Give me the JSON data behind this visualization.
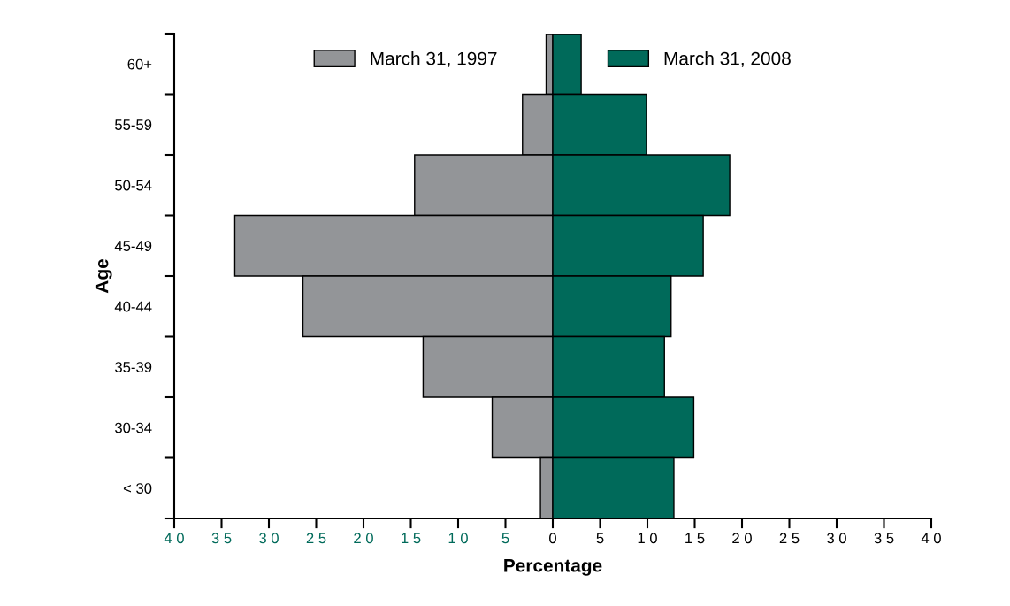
{
  "chart_data": {
    "type": "bar",
    "orientation": "horizontal",
    "stacked": true,
    "ylabel": "Age",
    "xlabel": "Percentage",
    "categories": [
      "60+",
      "55-59",
      "50-54",
      "45-49",
      "40-44",
      "35-39",
      "30-34",
      "< 30"
    ],
    "series": [
      {
        "name": "March 31, 1997",
        "color": "#939598",
        "values": [
          -0.7,
          -3.2,
          -14.6,
          -33.6,
          -26.4,
          -13.7,
          -6.4,
          -1.3
        ]
      },
      {
        "name": "March 31, 2008",
        "color": "#006a5a",
        "values": [
          3.0,
          9.9,
          18.7,
          15.9,
          12.5,
          11.8,
          14.9,
          12.8
        ]
      }
    ],
    "xlim": [
      -40,
      40
    ],
    "xticks": [
      {
        "value": -40,
        "label": "4 0"
      },
      {
        "value": -35,
        "label": "3 5"
      },
      {
        "value": -30,
        "label": "3 0"
      },
      {
        "value": -25,
        "label": "2 5"
      },
      {
        "value": -20,
        "label": "2 0"
      },
      {
        "value": -15,
        "label": "1 5"
      },
      {
        "value": -10,
        "label": "1 0"
      },
      {
        "value": -5,
        "label": "5"
      },
      {
        "value": 0,
        "label": "0"
      },
      {
        "value": 5,
        "label": "5"
      },
      {
        "value": 10,
        "label": "1 0"
      },
      {
        "value": 15,
        "label": "1 5"
      },
      {
        "value": 20,
        "label": "2 0"
      },
      {
        "value": 25,
        "label": "2 5"
      },
      {
        "value": 30,
        "label": "3 0"
      },
      {
        "value": 35,
        "label": "3 5"
      },
      {
        "value": 40,
        "label": "4 0"
      }
    ],
    "legend": "top",
    "grid": false
  }
}
